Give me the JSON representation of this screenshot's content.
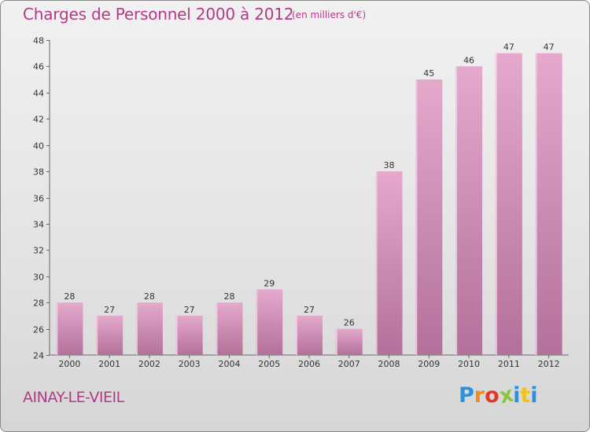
{
  "chart_data": {
    "type": "bar",
    "title": "Charges de Personnel 2000 à 2012",
    "subtitle": "(en milliers d'€)",
    "categories": [
      "2000",
      "2001",
      "2002",
      "2003",
      "2004",
      "2005",
      "2006",
      "2007",
      "2008",
      "2009",
      "2010",
      "2011",
      "2012"
    ],
    "values": [
      28,
      27,
      28,
      27,
      28,
      29,
      27,
      26,
      38,
      45,
      46,
      47,
      47
    ],
    "ylim": [
      24,
      48
    ],
    "yticks": [
      24,
      26,
      28,
      30,
      32,
      34,
      36,
      38,
      40,
      42,
      44,
      46,
      48
    ],
    "grid": false,
    "xlabel": "",
    "ylabel": "",
    "colors": {
      "bar_top": "#e5a9cd",
      "bar_bottom": "#b2719a",
      "bar_highlight": "#f1cde2",
      "accent": "#b23a86"
    }
  },
  "location": "AINAY-LE-VIEIL",
  "logo": {
    "letters": [
      "P",
      "r",
      "o",
      "x",
      "i",
      "t",
      "i"
    ],
    "colors": [
      "#2f8fd8",
      "#f08c1a",
      "#e03a2a",
      "#8cc63e",
      "#2f8fd8",
      "#f3c11b",
      "#2f8fd8"
    ]
  }
}
